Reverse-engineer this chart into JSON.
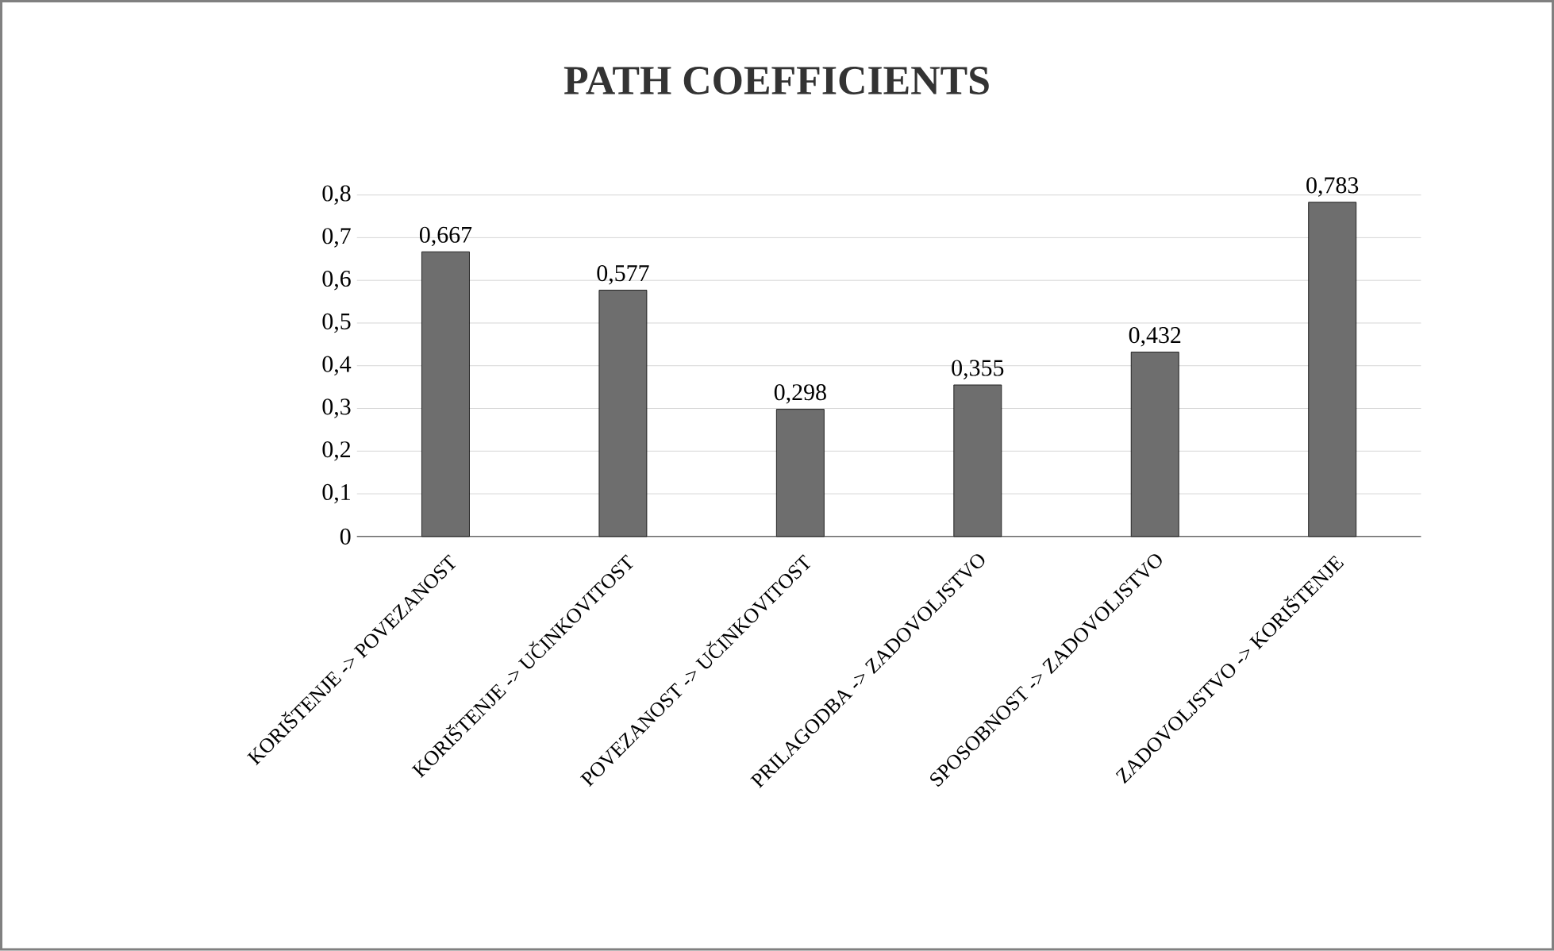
{
  "chart_data": {
    "type": "bar",
    "title": "PATH COEFFICIENTS",
    "categories": [
      "KORIŠTENJE -> POVEZANOST",
      "KORIŠTENJE -> UČINKOVITOST",
      "POVEZANOST -> UČINKOVITOST",
      "PRILAGODBA -> ZADOVOLJSTVO",
      "SPOSOBNOST -> ZADOVOLJSTVO",
      "ZADOVOLJSTVO -> KORIŠTENJE"
    ],
    "values": [
      0.667,
      0.577,
      0.298,
      0.355,
      0.432,
      0.783
    ],
    "value_labels": [
      "0,667",
      "0,577",
      "0,298",
      "0,355",
      "0,432",
      "0,783"
    ],
    "color": "#6e6e6e",
    "ylim": [
      0,
      0.8
    ],
    "yticks": [
      0,
      {
        "value": 0.1,
        "label": "0,1"
      },
      {
        "value": 0.2,
        "label": "0,2"
      },
      {
        "value": 0.3,
        "label": "0,3"
      },
      {
        "value": 0.4,
        "label": "0,4"
      },
      {
        "value": 0.5,
        "label": "0,5"
      },
      {
        "value": 0.6,
        "label": "0,6"
      },
      {
        "value": 0.7,
        "label": "0,7"
      },
      {
        "value": 0.8,
        "label": "0,8"
      }
    ],
    "grid": "y"
  }
}
